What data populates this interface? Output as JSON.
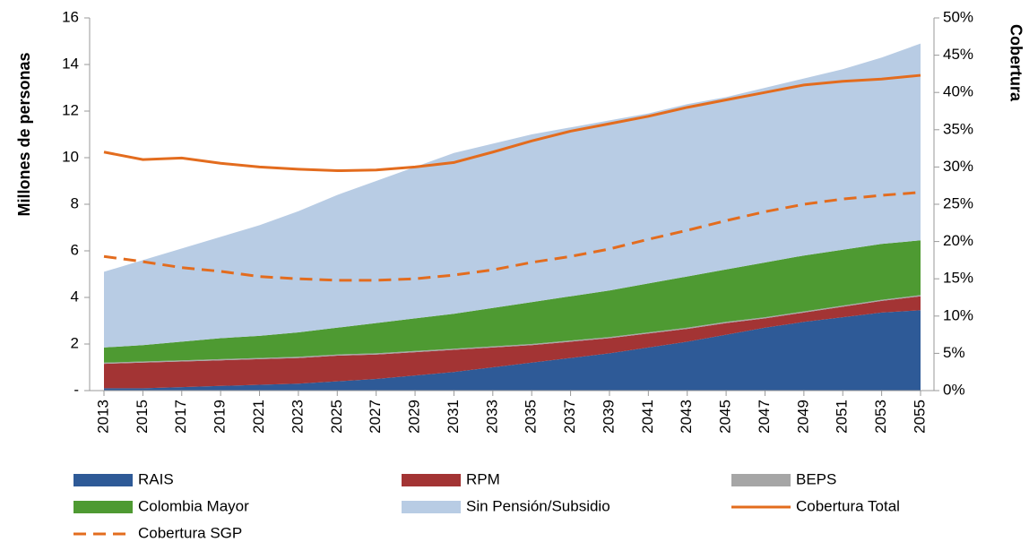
{
  "chart_data": {
    "type": "stacked_area_line",
    "y_label": "Millones de personas",
    "y2_label": "Cobertura",
    "categories": [
      "2013",
      "2015",
      "2017",
      "2019",
      "2021",
      "2023",
      "2025",
      "2027",
      "2029",
      "2031",
      "2033",
      "2035",
      "2037",
      "2039",
      "2041",
      "2043",
      "2045",
      "2047",
      "2049",
      "2051",
      "2053",
      "2055"
    ],
    "ylim": [
      0,
      16
    ],
    "yticks": [
      {
        "value": 0,
        "label": "-"
      },
      2,
      4,
      6,
      8,
      10,
      12,
      14,
      16
    ],
    "y2lim": [
      0,
      50
    ],
    "y2ticks": [
      {
        "value": 0,
        "label": "0%"
      },
      {
        "value": 5,
        "label": "5%"
      },
      {
        "value": 10,
        "label": "10%"
      },
      {
        "value": 15,
        "label": "15%"
      },
      {
        "value": 20,
        "label": "20%"
      },
      {
        "value": 25,
        "label": "25%"
      },
      {
        "value": 30,
        "label": "30%"
      },
      {
        "value": 35,
        "label": "35%"
      },
      {
        "value": 40,
        "label": "40%"
      },
      {
        "value": 45,
        "label": "45%"
      },
      {
        "value": 50,
        "label": "50%"
      }
    ],
    "series": [
      {
        "name": "RAIS",
        "color": "#2e5a97",
        "kind": "area",
        "values": [
          0.1,
          0.1,
          0.15,
          0.2,
          0.25,
          0.3,
          0.4,
          0.5,
          0.65,
          0.8,
          1.0,
          1.2,
          1.4,
          1.6,
          1.85,
          2.1,
          2.4,
          2.7,
          2.95,
          3.15,
          3.35,
          3.45
        ]
      },
      {
        "name": "RPM",
        "color": "#a33434",
        "kind": "area",
        "values": [
          1.05,
          1.1,
          1.1,
          1.1,
          1.1,
          1.1,
          1.1,
          1.05,
          1.0,
          0.95,
          0.85,
          0.75,
          0.7,
          0.65,
          0.6,
          0.55,
          0.5,
          0.4,
          0.4,
          0.45,
          0.5,
          0.6
        ]
      },
      {
        "name": "BEPS",
        "color": "#a6a6a6",
        "kind": "area",
        "values": [
          0.05,
          0.05,
          0.05,
          0.05,
          0.05,
          0.05,
          0.05,
          0.05,
          0.05,
          0.05,
          0.05,
          0.05,
          0.05,
          0.05,
          0.05,
          0.05,
          0.05,
          0.05,
          0.05,
          0.05,
          0.05,
          0.05
        ]
      },
      {
        "name": "Colombia Mayor",
        "color": "#4e9a32",
        "kind": "area",
        "values": [
          0.65,
          0.7,
          0.8,
          0.9,
          0.95,
          1.05,
          1.15,
          1.3,
          1.4,
          1.5,
          1.65,
          1.8,
          1.9,
          2.0,
          2.1,
          2.2,
          2.25,
          2.35,
          2.4,
          2.4,
          2.4,
          2.35
        ]
      },
      {
        "name": "Sin Pensión/Subsidio",
        "color": "#b8cce4",
        "kind": "area",
        "values": [
          3.25,
          3.65,
          4.0,
          4.35,
          4.75,
          5.2,
          5.7,
          6.1,
          6.5,
          6.9,
          7.05,
          7.2,
          7.25,
          7.3,
          7.3,
          7.4,
          7.4,
          7.5,
          7.6,
          7.75,
          8.0,
          8.45
        ]
      },
      {
        "name": "Cobertura Total",
        "color": "#e36c1e",
        "kind": "line",
        "style": "solid",
        "axis": "y2",
        "values": [
          32,
          31,
          31.2,
          30.5,
          30,
          29.7,
          29.5,
          29.6,
          30,
          30.6,
          32,
          33.5,
          34.8,
          35.8,
          36.8,
          38,
          39,
          40,
          41,
          41.5,
          41.8,
          42.3
        ]
      },
      {
        "name": "Cobertura SGP",
        "color": "#e36c1e",
        "kind": "line",
        "style": "dashed",
        "axis": "y2",
        "values": [
          18,
          17.3,
          16.5,
          16,
          15.3,
          15,
          14.8,
          14.8,
          15,
          15.5,
          16.2,
          17.2,
          18,
          19,
          20.3,
          21.5,
          22.8,
          24,
          25,
          25.7,
          26.2,
          26.6
        ]
      }
    ]
  }
}
